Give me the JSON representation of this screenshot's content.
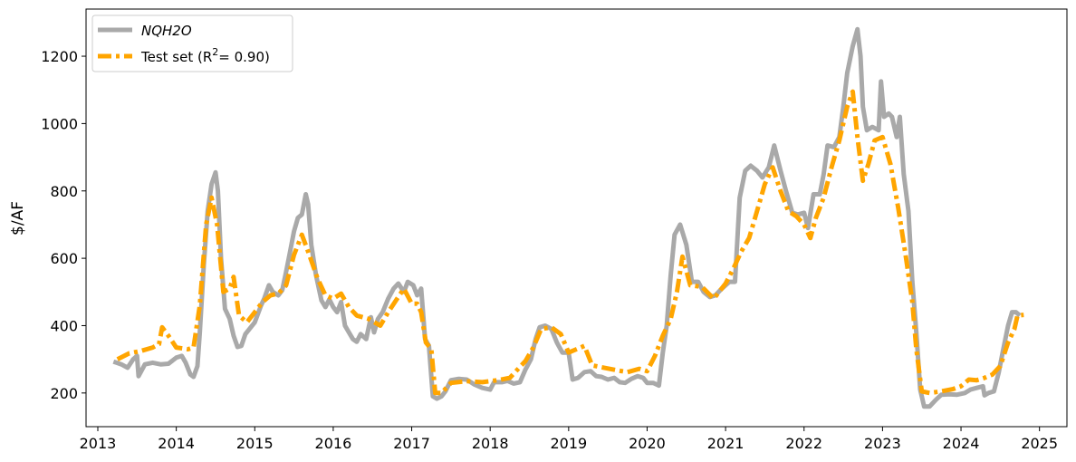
{
  "chart_data": {
    "type": "line",
    "title": "",
    "xlabel": "",
    "ylabel": "$/AF",
    "xlim": [
      2012.85,
      2025.35
    ],
    "ylim": [
      100,
      1340
    ],
    "x_ticks": [
      2013,
      2014,
      2015,
      2016,
      2017,
      2018,
      2019,
      2020,
      2021,
      2022,
      2023,
      2024,
      2025
    ],
    "x_tick_labels": [
      "2013",
      "2014",
      "2015",
      "2016",
      "2017",
      "2018",
      "2019",
      "2020",
      "2021",
      "2022",
      "2023",
      "2024",
      "2025"
    ],
    "y_ticks": [
      200,
      400,
      600,
      800,
      1000,
      1200
    ],
    "y_tick_labels": [
      "200",
      "400",
      "600",
      "800",
      "1000",
      "1200"
    ],
    "grid": false,
    "legend_position": "top-left",
    "series": [
      {
        "name": "NQH2O",
        "legend_label": "NQH2O",
        "color": "#a9a9a9",
        "style": "solid",
        "points": [
          [
            2013.2,
            293
          ],
          [
            2013.3,
            285
          ],
          [
            2013.38,
            275
          ],
          [
            2013.45,
            300
          ],
          [
            2013.5,
            310
          ],
          [
            2013.52,
            250
          ],
          [
            2013.6,
            285
          ],
          [
            2013.7,
            290
          ],
          [
            2013.8,
            285
          ],
          [
            2013.9,
            287
          ],
          [
            2014.0,
            305
          ],
          [
            2014.07,
            310
          ],
          [
            2014.12,
            290
          ],
          [
            2014.18,
            255
          ],
          [
            2014.22,
            248
          ],
          [
            2014.27,
            280
          ],
          [
            2014.3,
            380
          ],
          [
            2014.35,
            580
          ],
          [
            2014.4,
            740
          ],
          [
            2014.45,
            820
          ],
          [
            2014.5,
            855
          ],
          [
            2014.53,
            800
          ],
          [
            2014.57,
            600
          ],
          [
            2014.62,
            450
          ],
          [
            2014.68,
            420
          ],
          [
            2014.73,
            370
          ],
          [
            2014.78,
            337
          ],
          [
            2014.83,
            340
          ],
          [
            2014.88,
            375
          ],
          [
            2014.95,
            395
          ],
          [
            2015.0,
            410
          ],
          [
            2015.08,
            460
          ],
          [
            2015.12,
            480
          ],
          [
            2015.18,
            520
          ],
          [
            2015.23,
            500
          ],
          [
            2015.3,
            490
          ],
          [
            2015.35,
            505
          ],
          [
            2015.4,
            560
          ],
          [
            2015.45,
            620
          ],
          [
            2015.5,
            680
          ],
          [
            2015.55,
            720
          ],
          [
            2015.6,
            730
          ],
          [
            2015.65,
            790
          ],
          [
            2015.68,
            760
          ],
          [
            2015.72,
            640
          ],
          [
            2015.78,
            550
          ],
          [
            2015.85,
            475
          ],
          [
            2015.9,
            455
          ],
          [
            2015.95,
            478
          ],
          [
            2016.0,
            455
          ],
          [
            2016.05,
            440
          ],
          [
            2016.1,
            470
          ],
          [
            2016.15,
            400
          ],
          [
            2016.2,
            380
          ],
          [
            2016.25,
            360
          ],
          [
            2016.3,
            352
          ],
          [
            2016.35,
            375
          ],
          [
            2016.42,
            360
          ],
          [
            2016.48,
            425
          ],
          [
            2016.52,
            380
          ],
          [
            2016.57,
            420
          ],
          [
            2016.63,
            440
          ],
          [
            2016.7,
            480
          ],
          [
            2016.77,
            510
          ],
          [
            2016.83,
            525
          ],
          [
            2016.9,
            500
          ],
          [
            2016.95,
            530
          ],
          [
            2017.02,
            520
          ],
          [
            2017.07,
            490
          ],
          [
            2017.12,
            510
          ],
          [
            2017.17,
            360
          ],
          [
            2017.22,
            340
          ],
          [
            2017.27,
            190
          ],
          [
            2017.32,
            183
          ],
          [
            2017.38,
            190
          ],
          [
            2017.43,
            205
          ],
          [
            2017.5,
            238
          ],
          [
            2017.6,
            242
          ],
          [
            2017.7,
            240
          ],
          [
            2017.8,
            225
          ],
          [
            2017.9,
            215
          ],
          [
            2018.0,
            210
          ],
          [
            2018.05,
            232
          ],
          [
            2018.15,
            232
          ],
          [
            2018.22,
            236
          ],
          [
            2018.3,
            228
          ],
          [
            2018.38,
            232
          ],
          [
            2018.45,
            270
          ],
          [
            2018.52,
            300
          ],
          [
            2018.58,
            360
          ],
          [
            2018.63,
            395
          ],
          [
            2018.7,
            400
          ],
          [
            2018.78,
            390
          ],
          [
            2018.85,
            350
          ],
          [
            2018.92,
            320
          ],
          [
            2019.0,
            320
          ],
          [
            2019.05,
            240
          ],
          [
            2019.12,
            245
          ],
          [
            2019.2,
            262
          ],
          [
            2019.28,
            265
          ],
          [
            2019.35,
            250
          ],
          [
            2019.42,
            248
          ],
          [
            2019.5,
            240
          ],
          [
            2019.58,
            245
          ],
          [
            2019.65,
            232
          ],
          [
            2019.72,
            230
          ],
          [
            2019.8,
            242
          ],
          [
            2019.88,
            250
          ],
          [
            2019.95,
            245
          ],
          [
            2020.0,
            230
          ],
          [
            2020.08,
            230
          ],
          [
            2020.15,
            222
          ],
          [
            2020.2,
            320
          ],
          [
            2020.25,
            400
          ],
          [
            2020.3,
            550
          ],
          [
            2020.35,
            670
          ],
          [
            2020.42,
            700
          ],
          [
            2020.5,
            640
          ],
          [
            2020.57,
            530
          ],
          [
            2020.65,
            530
          ],
          [
            2020.72,
            500
          ],
          [
            2020.8,
            485
          ],
          [
            2020.87,
            490
          ],
          [
            2020.93,
            505
          ],
          [
            2021.0,
            520
          ],
          [
            2021.05,
            530
          ],
          [
            2021.12,
            530
          ],
          [
            2021.18,
            780
          ],
          [
            2021.25,
            860
          ],
          [
            2021.32,
            875
          ],
          [
            2021.4,
            860
          ],
          [
            2021.47,
            840
          ],
          [
            2021.55,
            870
          ],
          [
            2021.62,
            935
          ],
          [
            2021.7,
            860
          ],
          [
            2021.77,
            800
          ],
          [
            2021.85,
            735
          ],
          [
            2021.92,
            730
          ],
          [
            2022.0,
            735
          ],
          [
            2022.05,
            690
          ],
          [
            2022.12,
            790
          ],
          [
            2022.2,
            790
          ],
          [
            2022.25,
            850
          ],
          [
            2022.3,
            935
          ],
          [
            2022.38,
            930
          ],
          [
            2022.45,
            960
          ],
          [
            2022.5,
            1050
          ],
          [
            2022.55,
            1150
          ],
          [
            2022.62,
            1230
          ],
          [
            2022.68,
            1280
          ],
          [
            2022.72,
            1200
          ],
          [
            2022.75,
            1050
          ],
          [
            2022.8,
            980
          ],
          [
            2022.87,
            990
          ],
          [
            2022.95,
            980
          ],
          [
            2022.98,
            1125
          ],
          [
            2023.02,
            1020
          ],
          [
            2023.08,
            1030
          ],
          [
            2023.12,
            1020
          ],
          [
            2023.18,
            960
          ],
          [
            2023.22,
            1020
          ],
          [
            2023.27,
            850
          ],
          [
            2023.33,
            740
          ],
          [
            2023.38,
            530
          ],
          [
            2023.43,
            380
          ],
          [
            2023.48,
            210
          ],
          [
            2023.53,
            160
          ],
          [
            2023.6,
            160
          ],
          [
            2023.68,
            180
          ],
          [
            2023.75,
            195
          ],
          [
            2023.85,
            196
          ],
          [
            2023.95,
            195
          ],
          [
            2024.05,
            200
          ],
          [
            2024.12,
            210
          ],
          [
            2024.2,
            215
          ],
          [
            2024.28,
            220
          ],
          [
            2024.3,
            193
          ],
          [
            2024.35,
            200
          ],
          [
            2024.42,
            205
          ],
          [
            2024.48,
            260
          ],
          [
            2024.53,
            320
          ],
          [
            2024.6,
            400
          ],
          [
            2024.65,
            440
          ],
          [
            2024.7,
            440
          ],
          [
            2024.75,
            430
          ]
        ]
      },
      {
        "name": "Test set",
        "legend_label_main": "Test set (R",
        "legend_label_sup": "2",
        "legend_label_tail": "= 0.90)",
        "color": "#ffa500",
        "style": "dashdot",
        "points": [
          [
            2013.25,
            300
          ],
          [
            2013.4,
            318
          ],
          [
            2013.55,
            325
          ],
          [
            2013.7,
            335
          ],
          [
            2013.78,
            345
          ],
          [
            2013.82,
            395
          ],
          [
            2013.9,
            370
          ],
          [
            2014.0,
            335
          ],
          [
            2014.15,
            330
          ],
          [
            2014.22,
            335
          ],
          [
            2014.3,
            460
          ],
          [
            2014.38,
            700
          ],
          [
            2014.45,
            780
          ],
          [
            2014.52,
            700
          ],
          [
            2014.6,
            500
          ],
          [
            2014.68,
            510
          ],
          [
            2014.73,
            545
          ],
          [
            2014.8,
            430
          ],
          [
            2014.9,
            410
          ],
          [
            2015.0,
            440
          ],
          [
            2015.1,
            470
          ],
          [
            2015.2,
            490
          ],
          [
            2015.3,
            495
          ],
          [
            2015.4,
            520
          ],
          [
            2015.5,
            610
          ],
          [
            2015.6,
            670
          ],
          [
            2015.68,
            620
          ],
          [
            2015.8,
            540
          ],
          [
            2015.9,
            490
          ],
          [
            2016.0,
            480
          ],
          [
            2016.1,
            495
          ],
          [
            2016.2,
            455
          ],
          [
            2016.3,
            430
          ],
          [
            2016.45,
            420
          ],
          [
            2016.6,
            400
          ],
          [
            2016.7,
            440
          ],
          [
            2016.8,
            475
          ],
          [
            2016.9,
            510
          ],
          [
            2017.0,
            465
          ],
          [
            2017.07,
            465
          ],
          [
            2017.12,
            440
          ],
          [
            2017.18,
            350
          ],
          [
            2017.25,
            330
          ],
          [
            2017.3,
            200
          ],
          [
            2017.38,
            200
          ],
          [
            2017.5,
            230
          ],
          [
            2017.7,
            235
          ],
          [
            2017.9,
            232
          ],
          [
            2018.1,
            238
          ],
          [
            2018.25,
            245
          ],
          [
            2018.35,
            270
          ],
          [
            2018.45,
            295
          ],
          [
            2018.55,
            335
          ],
          [
            2018.65,
            390
          ],
          [
            2018.78,
            395
          ],
          [
            2018.9,
            375
          ],
          [
            2019.0,
            320
          ],
          [
            2019.1,
            330
          ],
          [
            2019.2,
            340
          ],
          [
            2019.3,
            282
          ],
          [
            2019.45,
            275
          ],
          [
            2019.6,
            268
          ],
          [
            2019.75,
            262
          ],
          [
            2019.9,
            272
          ],
          [
            2020.0,
            265
          ],
          [
            2020.1,
            310
          ],
          [
            2020.2,
            370
          ],
          [
            2020.3,
            420
          ],
          [
            2020.38,
            500
          ],
          [
            2020.45,
            605
          ],
          [
            2020.55,
            520
          ],
          [
            2020.7,
            515
          ],
          [
            2020.85,
            480
          ],
          [
            2021.0,
            525
          ],
          [
            2021.1,
            570
          ],
          [
            2021.2,
            620
          ],
          [
            2021.3,
            660
          ],
          [
            2021.4,
            740
          ],
          [
            2021.5,
            820
          ],
          [
            2021.6,
            870
          ],
          [
            2021.7,
            800
          ],
          [
            2021.8,
            740
          ],
          [
            2021.9,
            725
          ],
          [
            2022.0,
            700
          ],
          [
            2022.08,
            660
          ],
          [
            2022.15,
            720
          ],
          [
            2022.25,
            780
          ],
          [
            2022.35,
            870
          ],
          [
            2022.45,
            950
          ],
          [
            2022.55,
            1050
          ],
          [
            2022.62,
            1095
          ],
          [
            2022.68,
            960
          ],
          [
            2022.75,
            830
          ],
          [
            2022.82,
            880
          ],
          [
            2022.9,
            950
          ],
          [
            2023.0,
            960
          ],
          [
            2023.1,
            880
          ],
          [
            2023.2,
            750
          ],
          [
            2023.3,
            600
          ],
          [
            2023.38,
            470
          ],
          [
            2023.43,
            330
          ],
          [
            2023.5,
            205
          ],
          [
            2023.6,
            200
          ],
          [
            2023.75,
            205
          ],
          [
            2023.9,
            212
          ],
          [
            2024.0,
            220
          ],
          [
            2024.1,
            240
          ],
          [
            2024.2,
            238
          ],
          [
            2024.3,
            245
          ],
          [
            2024.4,
            255
          ],
          [
            2024.5,
            280
          ],
          [
            2024.6,
            350
          ],
          [
            2024.68,
            390
          ],
          [
            2024.72,
            430
          ],
          [
            2024.8,
            432
          ]
        ]
      }
    ]
  }
}
